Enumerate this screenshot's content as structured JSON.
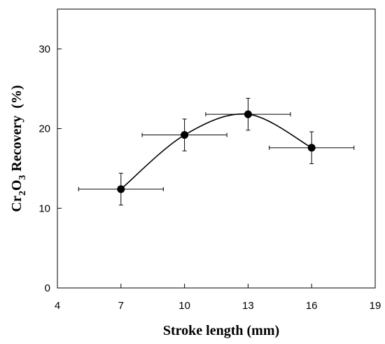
{
  "chart_data": {
    "type": "scatter",
    "xlabel": "Stroke length (mm)",
    "ylabel": {
      "parts": [
        "Cr",
        "2",
        "O",
        "3",
        " Recovery",
        "  (%)"
      ]
    },
    "xlim": [
      4,
      19
    ],
    "ylim": [
      0,
      35
    ],
    "xticks": [
      4,
      7,
      10,
      13,
      16,
      19
    ],
    "yticks": [
      0,
      10,
      20,
      30
    ],
    "xtick_labels": [
      "4",
      "7",
      "10",
      "13",
      "16",
      "19"
    ],
    "ytick_labels": [
      "0",
      "10",
      "20",
      "30"
    ],
    "grid": false,
    "legend": "none",
    "smooth_curve": true,
    "points": [
      {
        "x": 7,
        "y": 12.4,
        "xerr": 2,
        "yerr": 2.0
      },
      {
        "x": 10,
        "y": 19.2,
        "xerr": 2,
        "yerr": 2.0
      },
      {
        "x": 13,
        "y": 21.8,
        "xerr": 2,
        "yerr": 2.0
      },
      {
        "x": 16,
        "y": 17.6,
        "xerr": 2,
        "yerr": 2.0
      }
    ],
    "colors": {
      "marker": "#000000",
      "line": "#000000"
    }
  }
}
